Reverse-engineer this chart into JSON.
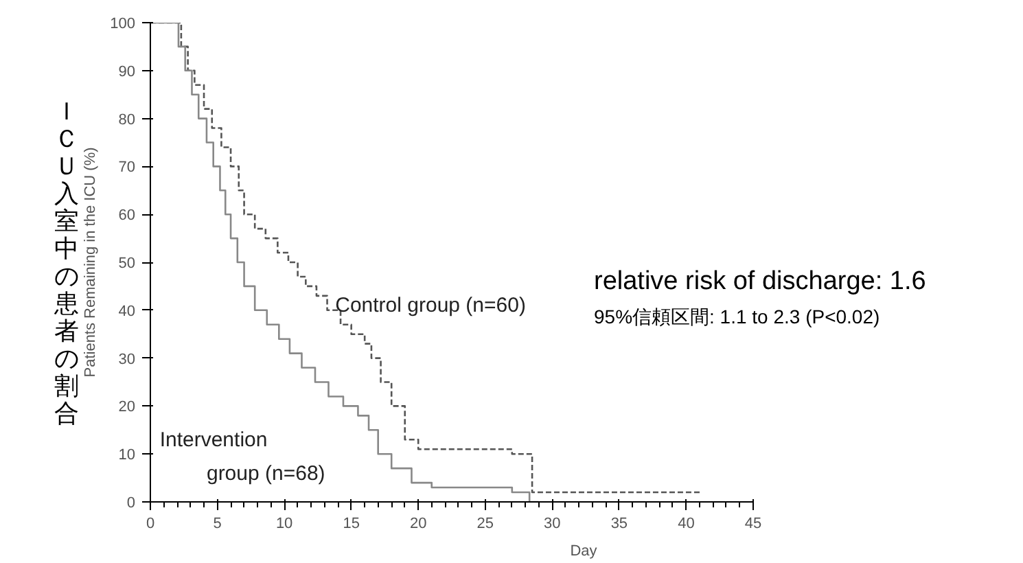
{
  "chart_data": {
    "type": "step",
    "xlabel": "Day",
    "ylabel": "Patients Remaining in the ICU (%)",
    "xlim": [
      0,
      45
    ],
    "ylim": [
      0,
      100
    ],
    "xticks": [
      0,
      5,
      10,
      15,
      20,
      25,
      30,
      35,
      40,
      45
    ],
    "yticks": [
      0,
      10,
      20,
      30,
      40,
      50,
      60,
      70,
      80,
      90,
      100
    ],
    "grid": false,
    "marker": "none",
    "series": [
      {
        "name": "Control group (n=60)",
        "color": "#555555",
        "line_style": "dashed",
        "x": [
          0,
          1.7,
          2.3,
          2.8,
          3.3,
          4,
          4.6,
          5.3,
          6,
          6.6,
          7,
          7.8,
          8.6,
          9.5,
          10.3,
          11,
          11.6,
          12.4,
          13.2,
          14.2,
          15,
          16,
          16.5,
          17.2,
          18,
          19,
          20,
          22,
          26,
          27,
          28.5,
          41
        ],
        "values": [
          100,
          100,
          95,
          90,
          87,
          82,
          78,
          74,
          70,
          65,
          60,
          57,
          55,
          52,
          50,
          47,
          45,
          43,
          40,
          37,
          35,
          33,
          30,
          25,
          20,
          13,
          11,
          11,
          11,
          10,
          2,
          2
        ]
      },
      {
        "name": "Intervention group (n=68)",
        "color": "#888888",
        "line_style": "solid",
        "x": [
          0,
          1.7,
          2.1,
          2.6,
          3.1,
          3.6,
          4.2,
          4.7,
          5.2,
          5.6,
          6,
          6.5,
          7,
          7.8,
          8.7,
          9.6,
          10.4,
          11.3,
          12.3,
          13.3,
          14.4,
          15.5,
          16.3,
          17,
          18,
          19.5,
          21,
          25,
          27,
          28.3,
          29
        ],
        "values": [
          100,
          100,
          95,
          90,
          85,
          80,
          75,
          70,
          65,
          60,
          55,
          50,
          45,
          40,
          37,
          34,
          31,
          28,
          25,
          22,
          20,
          18,
          15,
          10,
          7,
          4,
          3,
          3,
          2,
          0,
          0
        ]
      }
    ],
    "annotations": [
      "ＩＣＵ入室中の患者の割合",
      "relative risk of discharge: 1.6",
      "95%信頼区間: 1.1 to 2.3 (P<0.02)"
    ]
  }
}
